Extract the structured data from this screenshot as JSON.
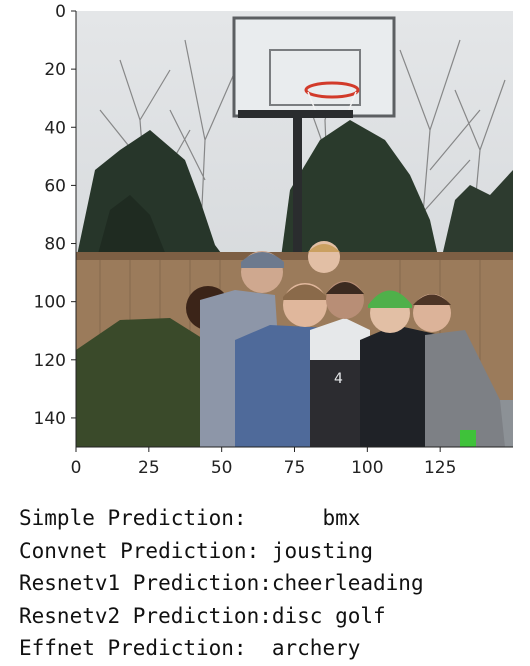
{
  "chart_data": {
    "type": "image",
    "title": "",
    "xlabel": "",
    "ylabel": "",
    "xlim": [
      0,
      150
    ],
    "ylim": [
      150,
      0
    ],
    "x_ticks": [
      0,
      25,
      50,
      75,
      100,
      125
    ],
    "x_tick_labels": [
      "0",
      "25",
      "50",
      "75",
      "100",
      "125"
    ],
    "y_ticks": [
      0,
      20,
      40,
      60,
      80,
      100,
      120,
      140
    ],
    "y_tick_labels": [
      "0",
      "20",
      "40",
      "60",
      "80",
      "100",
      "120",
      "140"
    ],
    "grid": false,
    "legend": "none"
  },
  "predictions": [
    {
      "label": "Simple Prediction:",
      "value": "bmx",
      "gap": "      "
    },
    {
      "label": "Convnet Prediction:",
      "value": "jousting",
      "gap": " "
    },
    {
      "label": "Resnetv1 Prediction:",
      "value": "cheerleading",
      "gap": ""
    },
    {
      "label": "Resnetv2 Prediction:",
      "value": "disc golf",
      "gap": ""
    },
    {
      "label": "Effnet Prediction:",
      "value": "archery",
      "gap": "  "
    }
  ],
  "colors": {
    "sky": "#d9dde1",
    "tree_dark": "#263326",
    "fence": "#9a7a5a",
    "ground": "#8a8f94",
    "axis": "#222222"
  }
}
